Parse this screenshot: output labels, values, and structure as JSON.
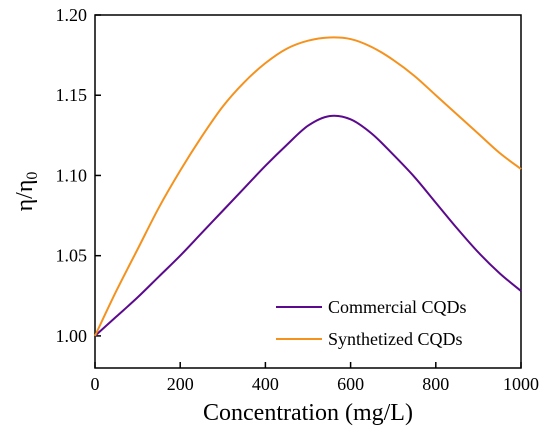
{
  "chart_data": {
    "type": "line",
    "title": "",
    "xlabel": "Concentration (mg/L)",
    "ylabel_main": "η/η",
    "ylabel_sub": "0",
    "xlim": [
      0,
      1000
    ],
    "ylim": [
      0.98,
      1.2
    ],
    "xticks": [
      0,
      200,
      400,
      600,
      800,
      1000
    ],
    "yticks": [
      1.0,
      1.05,
      1.1,
      1.15,
      1.2
    ],
    "ytick_labels": [
      "1.00",
      "1.05",
      "1.10",
      "1.15",
      "1.20"
    ],
    "grid": false,
    "legend_position": "bottom-right",
    "series": [
      {
        "name": "Commercial CQDs",
        "color": "#5B0A8E",
        "x": [
          0,
          50,
          100,
          150,
          200,
          250,
          300,
          350,
          400,
          450,
          500,
          550,
          600,
          650,
          700,
          750,
          800,
          850,
          900,
          950,
          1000
        ],
        "y": [
          1.0,
          1.012,
          1.024,
          1.037,
          1.05,
          1.064,
          1.078,
          1.092,
          1.106,
          1.119,
          1.131,
          1.137,
          1.135,
          1.126,
          1.113,
          1.099,
          1.083,
          1.067,
          1.052,
          1.039,
          1.028
        ]
      },
      {
        "name": "Synthetized CQDs",
        "color": "#F5921E",
        "x": [
          0,
          50,
          100,
          150,
          200,
          250,
          300,
          350,
          400,
          450,
          500,
          550,
          600,
          650,
          700,
          750,
          800,
          850,
          900,
          950,
          1000
        ],
        "y": [
          1.0,
          1.028,
          1.054,
          1.08,
          1.103,
          1.124,
          1.143,
          1.158,
          1.17,
          1.179,
          1.184,
          1.186,
          1.185,
          1.18,
          1.172,
          1.162,
          1.15,
          1.138,
          1.126,
          1.114,
          1.104
        ]
      }
    ]
  }
}
